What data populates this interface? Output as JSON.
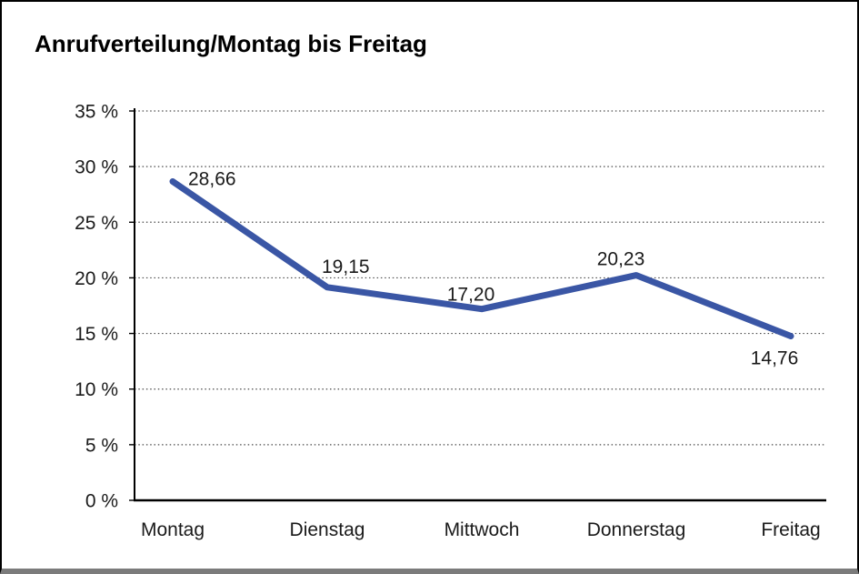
{
  "window": {
    "title": "Anrufverteilung/Montag bis Freitag"
  },
  "chart_data": {
    "type": "line",
    "title": "Anrufverteilung/Montag bis Freitag",
    "categories": [
      "Montag",
      "Dienstag",
      "Mittwoch",
      "Donnerstag",
      "Freitag"
    ],
    "values": [
      28.66,
      19.15,
      17.2,
      20.23,
      14.76
    ],
    "value_labels": [
      "28,66",
      "19,15",
      "17,20",
      "20,23",
      "14,76"
    ],
    "series_name": "Anrufverteilung",
    "y_ticks": [
      "35 %",
      "30 %",
      "25 %",
      "20 %",
      "15 %",
      "10 %",
      "5 %",
      "0 %"
    ],
    "ylim": [
      0,
      35
    ],
    "y_tick_step": 5,
    "xlabel": "",
    "ylabel": "",
    "grid": "horizontal-dotted",
    "legend": "none",
    "line_color": "#3A56A5",
    "axis_color": "#000000",
    "grid_color": "#4a4a4a",
    "text_color": "#1a1a1a"
  }
}
